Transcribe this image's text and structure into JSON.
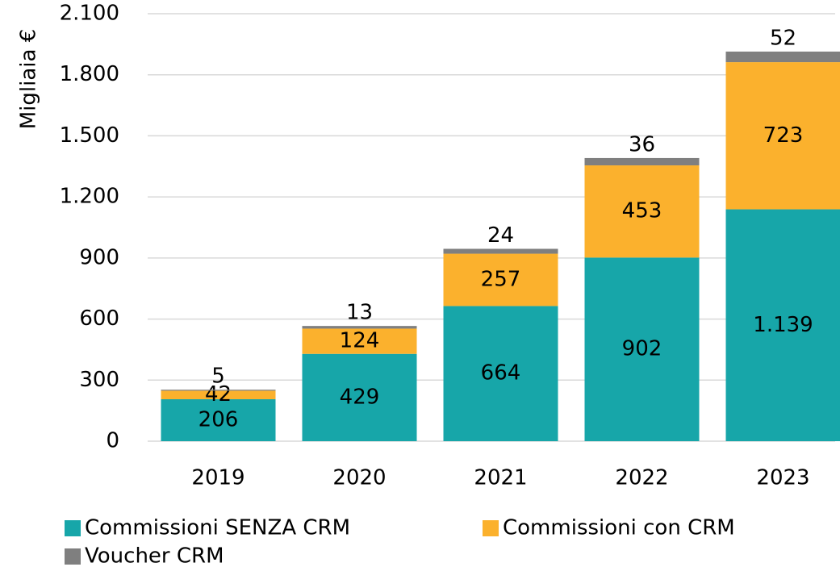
{
  "chart_data": {
    "type": "stacked_bar",
    "y_axis_label": "Migliaia €",
    "categories": [
      "2019",
      "2020",
      "2021",
      "2022",
      "2023"
    ],
    "series": [
      {
        "name": "Commissioni SENZA CRM",
        "color": "#17a6a9",
        "values": [
          206,
          429,
          664,
          902,
          1139
        ],
        "value_labels": [
          "206",
          "429",
          "664",
          "902",
          "1.139"
        ]
      },
      {
        "name": "Commissioni con CRM",
        "color": "#fbb12d",
        "values": [
          42,
          124,
          257,
          453,
          723
        ]
      },
      {
        "name": "Voucher CRM",
        "color": "#7f7f7f",
        "values": [
          5,
          13,
          24,
          36,
          52
        ]
      }
    ],
    "ylim": [
      0,
      2100
    ],
    "yticks": [
      0,
      300,
      600,
      900,
      {
        "value": 1200,
        "label": "1.200"
      },
      {
        "value": 1500,
        "label": "1.500"
      },
      {
        "value": 1800,
        "label": "1.800"
      },
      {
        "value": 2100,
        "label": "2.100"
      }
    ],
    "grid": true,
    "legend": "bottom"
  }
}
